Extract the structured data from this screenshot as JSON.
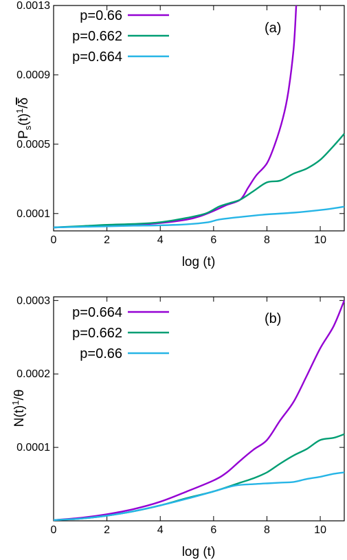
{
  "chart_data": [
    {
      "type": "line",
      "panel_label": "(a)",
      "xlabel": "log (t)",
      "ylabel": "Ps(t)1/δ̄",
      "ylabel_parts": {
        "base": "P",
        "sub": "s",
        "mid": "(t)",
        "sup": "1",
        "slash": "/",
        "bar": "δ"
      },
      "xlim": [
        0,
        10.9
      ],
      "ylim": [
        0.0,
        0.0013
      ],
      "xticks": [
        0,
        2,
        4,
        6,
        8,
        10
      ],
      "xtick_labels": [
        "0",
        "2",
        "4",
        "6",
        "8",
        "10"
      ],
      "yticks": [
        0.0001,
        0.0005,
        0.0009,
        0.0013
      ],
      "ytick_labels": [
        "0.0001",
        "0.0005",
        "0.0009",
        "0.0013"
      ],
      "legend_position": "top-left",
      "series": [
        {
          "name": "p=0.66",
          "color": "#9400d3",
          "x": [
            0,
            1,
            2,
            3,
            4,
            5,
            5.5,
            6,
            6.5,
            7,
            7.3,
            7.6,
            8,
            8.3,
            8.6,
            8.8,
            9.0,
            9.1
          ],
          "y": [
            2e-05,
            2.5e-05,
            3e-05,
            3.5e-05,
            4.5e-05,
            6.5e-05,
            8.5e-05,
            0.000115,
            0.00015,
            0.00018,
            0.00025,
            0.00032,
            0.00039,
            0.0005,
            0.00065,
            0.0008,
            0.00105,
            0.0013
          ]
        },
        {
          "name": "p=0.662",
          "color": "#009e73",
          "x": [
            0,
            1,
            2,
            3,
            4,
            5,
            5.7,
            6.2,
            6.6,
            7,
            7.5,
            8,
            8.5,
            9,
            9.5,
            10,
            10.5,
            10.9
          ],
          "y": [
            2e-05,
            2.7e-05,
            3.5e-05,
            4e-05,
            5e-05,
            7.5e-05,
            0.0001,
            0.00014,
            0.00016,
            0.00018,
            0.00023,
            0.00028,
            0.00029,
            0.00033,
            0.00036,
            0.00041,
            0.00049,
            0.00056
          ]
        },
        {
          "name": "p=0.664",
          "color": "#26b5e6",
          "x": [
            0,
            1,
            2,
            3,
            4,
            5,
            5.8,
            6.2,
            7,
            8,
            9,
            10,
            10.5,
            10.9
          ],
          "y": [
            2e-05,
            2.3e-05,
            2.6e-05,
            3e-05,
            3.2e-05,
            3.8e-05,
            5e-05,
            6.5e-05,
            8e-05,
            9.5e-05,
            0.000105,
            0.00012,
            0.00013,
            0.00014
          ]
        }
      ]
    },
    {
      "type": "line",
      "panel_label": "(b)",
      "xlabel": "log (t)",
      "ylabel": "N(t)1/θ",
      "ylabel_parts": {
        "base": "N(t)",
        "sup": "1",
        "slash": "/",
        "sym": "θ"
      },
      "xlim": [
        0,
        10.9
      ],
      "ylim": [
        0.0,
        0.000305
      ],
      "xticks": [
        0,
        2,
        4,
        6,
        8,
        10
      ],
      "xtick_labels": [
        "0",
        "2",
        "4",
        "6",
        "8",
        "10"
      ],
      "yticks": [
        0.0001,
        0.0002,
        0.0003
      ],
      "ytick_labels": [
        "0.0001",
        "0.0002",
        "0.0003"
      ],
      "legend_position": "top-left",
      "series": [
        {
          "name": "p=0.664",
          "color": "#9400d3",
          "x": [
            0,
            1,
            2,
            3,
            4,
            5,
            6,
            6.5,
            7,
            7.5,
            8,
            8.5,
            9,
            9.5,
            10,
            10.5,
            10.9
          ],
          "y": [
            1e-06,
            4e-06,
            9e-06,
            1.6e-05,
            2.6e-05,
            4e-05,
            5.5e-05,
            6.6e-05,
            8.2e-05,
            9.7e-05,
            0.00011,
            0.000137,
            0.000162,
            0.000198,
            0.000235,
            0.000265,
            0.0003
          ]
        },
        {
          "name": "p=0.662",
          "color": "#009e73",
          "x": [
            0,
            1,
            2,
            3,
            4,
            5,
            6,
            7,
            7.5,
            8,
            8.5,
            9,
            9.5,
            10,
            10.5,
            10.9
          ],
          "y": [
            1e-06,
            3e-06,
            7e-06,
            1.3e-05,
            2.1e-05,
            3.1e-05,
            4e-05,
            5.2e-05,
            5.8e-05,
            6.6e-05,
            7.8e-05,
            8.9e-05,
            9.8e-05,
            0.00011,
            0.000113,
            0.000118
          ]
        },
        {
          "name": "p=0.66",
          "color": "#26b5e6",
          "x": [
            0,
            1,
            2,
            3,
            4,
            5,
            6,
            6.8,
            7.5,
            8,
            8.5,
            9,
            9.5,
            10,
            10.5,
            10.9
          ],
          "y": [
            1e-06,
            3e-06,
            7e-06,
            1.3e-05,
            2.1e-05,
            3e-05,
            4e-05,
            4.8e-05,
            5e-05,
            5.1e-05,
            5.2e-05,
            5.3e-05,
            5.7e-05,
            6e-05,
            6.4e-05,
            6.6e-05
          ]
        }
      ]
    }
  ]
}
